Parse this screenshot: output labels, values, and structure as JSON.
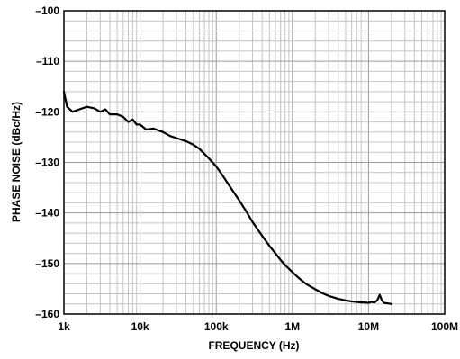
{
  "chart_data": {
    "type": "line",
    "xscale": "log",
    "xlabel": "FREQUENCY (Hz)",
    "ylabel": "PHASE NOISE (dBc/Hz)",
    "xlim": [
      1000,
      100000000
    ],
    "ylim": [
      -160,
      -100
    ],
    "grid": true,
    "x_ticks": [
      1000,
      10000,
      100000,
      1000000,
      10000000,
      100000000
    ],
    "x_tick_labels": [
      "1k",
      "10k",
      "100k",
      "1M",
      "10M",
      "100M"
    ],
    "y_ticks": [
      -100,
      -110,
      -120,
      -130,
      -140,
      -150,
      -160
    ],
    "y_tick_labels": [
      "–100",
      "–110",
      "–120",
      "–130",
      "–140",
      "–150",
      "–160"
    ],
    "series": [
      {
        "color": "#000000",
        "x": [
          1000,
          1100,
          1300,
          1600,
          2000,
          2500,
          3000,
          3500,
          4000,
          5000,
          6000,
          7000,
          8000,
          9000,
          10000,
          12000,
          15000,
          20000,
          25000,
          30000,
          40000,
          50000,
          60000,
          70000,
          80000,
          100000,
          120000,
          150000,
          200000,
          250000,
          300000,
          400000,
          500000,
          600000,
          700000,
          800000,
          1000000,
          1200000,
          1500000,
          2000000,
          2500000,
          3000000,
          4000000,
          5000000,
          6000000,
          7000000,
          8000000,
          9000000,
          10000000,
          11000000,
          12000000,
          13000000,
          14000000,
          15000000,
          16000000,
          18000000,
          20000000
        ],
        "y": [
          -116,
          -119,
          -120,
          -119.5,
          -119,
          -119.3,
          -120,
          -119.5,
          -120.5,
          -120.5,
          -121,
          -122,
          -121.5,
          -122.5,
          -122.5,
          -123.5,
          -123.3,
          -124,
          -124.8,
          -125.2,
          -125.8,
          -126.5,
          -127.3,
          -128.3,
          -129.2,
          -130.8,
          -132.5,
          -134.7,
          -137.5,
          -139.8,
          -141.8,
          -144.5,
          -146.5,
          -148,
          -149.3,
          -150.3,
          -151.7,
          -152.8,
          -154,
          -155.1,
          -155.9,
          -156.4,
          -157,
          -157.3,
          -157.5,
          -157.6,
          -157.7,
          -157.7,
          -157.8,
          -157.6,
          -157.7,
          -157.3,
          -156.2,
          -157.3,
          -157.8,
          -157.9,
          -158
        ]
      }
    ]
  }
}
